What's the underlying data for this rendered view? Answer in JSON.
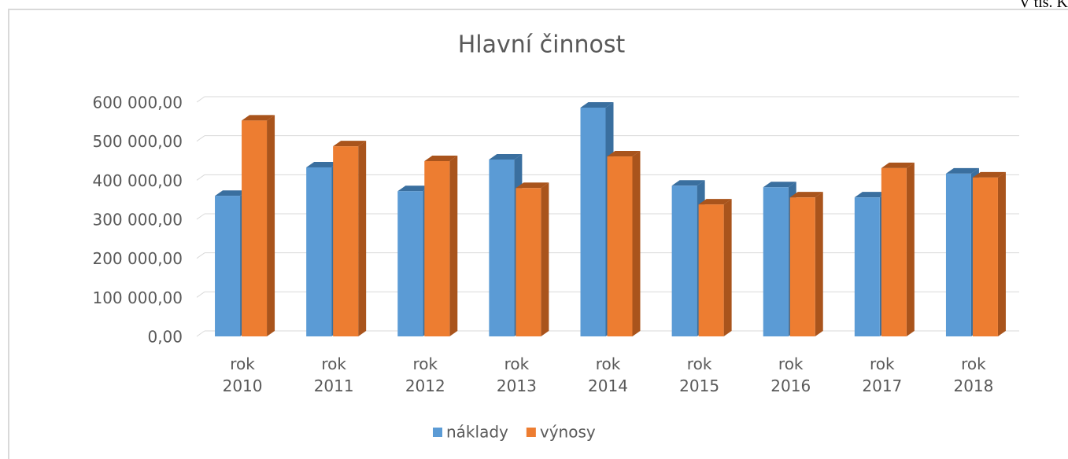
{
  "note": "V tis. K",
  "chart_data": {
    "type": "bar3d",
    "title": "Hlavní činnost",
    "categories": [
      "rok 2010",
      "rok 2011",
      "rok 2012",
      "rok 2013",
      "rok 2014",
      "rok 2015",
      "rok 2016",
      "rok 2017",
      "rok 2018"
    ],
    "series": [
      {
        "name": "náklady",
        "color": "#5b9bd5",
        "side": "#3a6f9f",
        "values": [
          360000,
          433000,
          372000,
          453000,
          586000,
          386000,
          382000,
          356000,
          417000
        ]
      },
      {
        "name": "výnosy",
        "color": "#ed7d31",
        "side": "#a9541c",
        "values": [
          553000,
          487000,
          449000,
          380000,
          461000,
          338000,
          356000,
          431000,
          407000
        ]
      }
    ],
    "ylim": [
      0,
      600000
    ],
    "yticks": [
      {
        "value": 0,
        "label": "0,00"
      },
      {
        "value": 100000,
        "label": "100 000,00"
      },
      {
        "value": 200000,
        "label": "200 000,00"
      },
      {
        "value": 300000,
        "label": "300 000,00"
      },
      {
        "value": 400000,
        "label": "400 000,00"
      },
      {
        "value": 500000,
        "label": "500 000,00"
      },
      {
        "value": 600000,
        "label": "600 000,00"
      }
    ],
    "grid": true,
    "legend": "bottom"
  }
}
